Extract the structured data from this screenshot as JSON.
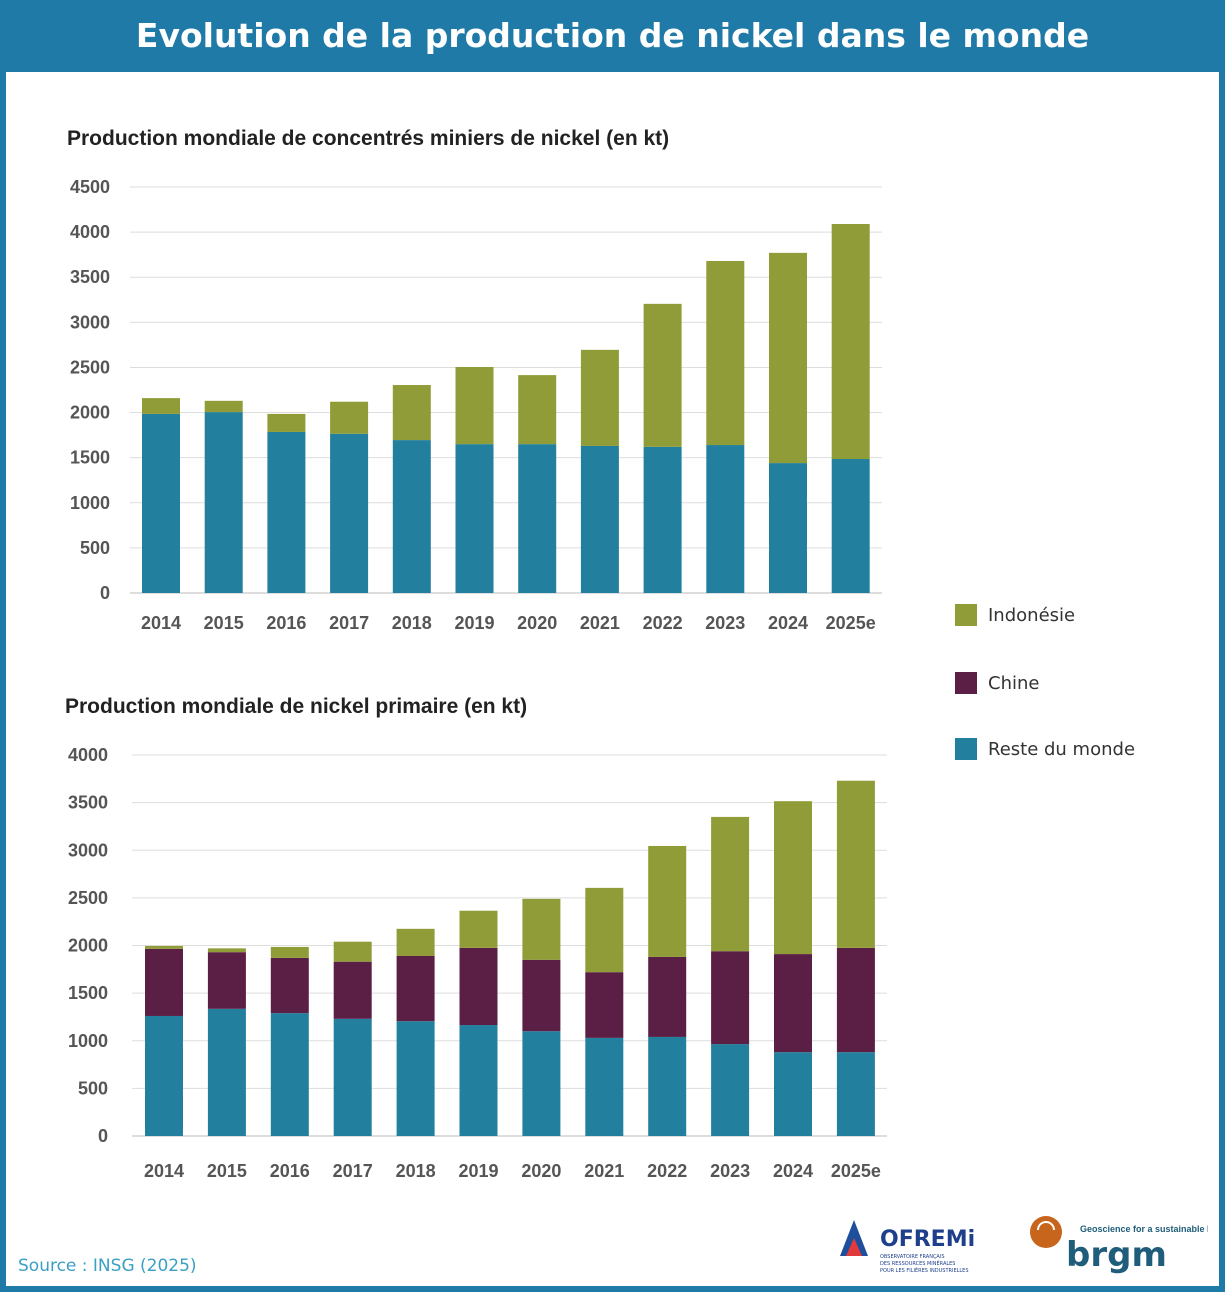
{
  "header": {
    "title": "Evolution de la production de nickel dans le monde"
  },
  "source": "Source : INSG (2025)",
  "logos": [
    "OFREMI",
    "OBSERVATOIRE FRANÇAIS DES RESSOURCES MINÉRALES POUR LES FILIÈRES INDUSTRIELLES",
    "brgm",
    "Geoscience for a sustainable Earth"
  ],
  "legend": [
    {
      "name": "Indonésie",
      "color": "#8f9c37"
    },
    {
      "name": "Chine",
      "color": "#5b1f45"
    },
    {
      "name": "Reste du monde",
      "color": "#22809e"
    }
  ],
  "chart_data": [
    {
      "type": "bar",
      "stacked": true,
      "title": "Production mondiale de concentrés miniers de nickel (en kt)",
      "categories": [
        "2014",
        "2015",
        "2016",
        "2017",
        "2018",
        "2019",
        "2020",
        "2021",
        "2022",
        "2023",
        "2024",
        "2025e"
      ],
      "ylim": [
        0,
        4500
      ],
      "yticks": [
        0,
        500,
        1000,
        1500,
        2000,
        2500,
        3000,
        3500,
        4000,
        4500
      ],
      "grid": true,
      "series": [
        {
          "name": "Reste du monde",
          "color": "#22809e",
          "values": [
            1985,
            2005,
            1785,
            1765,
            1695,
            1650,
            1650,
            1630,
            1620,
            1640,
            1440,
            1485
          ]
        },
        {
          "name": "Indonésie",
          "color": "#8f9c37",
          "values": [
            175,
            125,
            200,
            355,
            610,
            855,
            765,
            1065,
            1585,
            2040,
            2330,
            2605
          ]
        }
      ]
    },
    {
      "type": "bar",
      "stacked": true,
      "title": "Production mondiale de nickel primaire (en kt)",
      "categories": [
        "2014",
        "2015",
        "2016",
        "2017",
        "2018",
        "2019",
        "2020",
        "2021",
        "2022",
        "2023",
        "2024",
        "2025e"
      ],
      "ylim": [
        0,
        4000
      ],
      "yticks": [
        0,
        500,
        1000,
        1500,
        2000,
        2500,
        3000,
        3500,
        4000
      ],
      "grid": true,
      "series": [
        {
          "name": "Reste du monde",
          "color": "#22809e",
          "values": [
            1260,
            1335,
            1290,
            1230,
            1205,
            1165,
            1100,
            1030,
            1040,
            965,
            880,
            880
          ]
        },
        {
          "name": "Chine",
          "color": "#5b1f45",
          "values": [
            705,
            595,
            580,
            600,
            685,
            810,
            750,
            690,
            840,
            975,
            1030,
            1095
          ]
        },
        {
          "name": "Indonésie",
          "color": "#8f9c37",
          "values": [
            30,
            40,
            115,
            210,
            285,
            390,
            640,
            885,
            1165,
            1410,
            1605,
            1755
          ]
        }
      ]
    }
  ]
}
